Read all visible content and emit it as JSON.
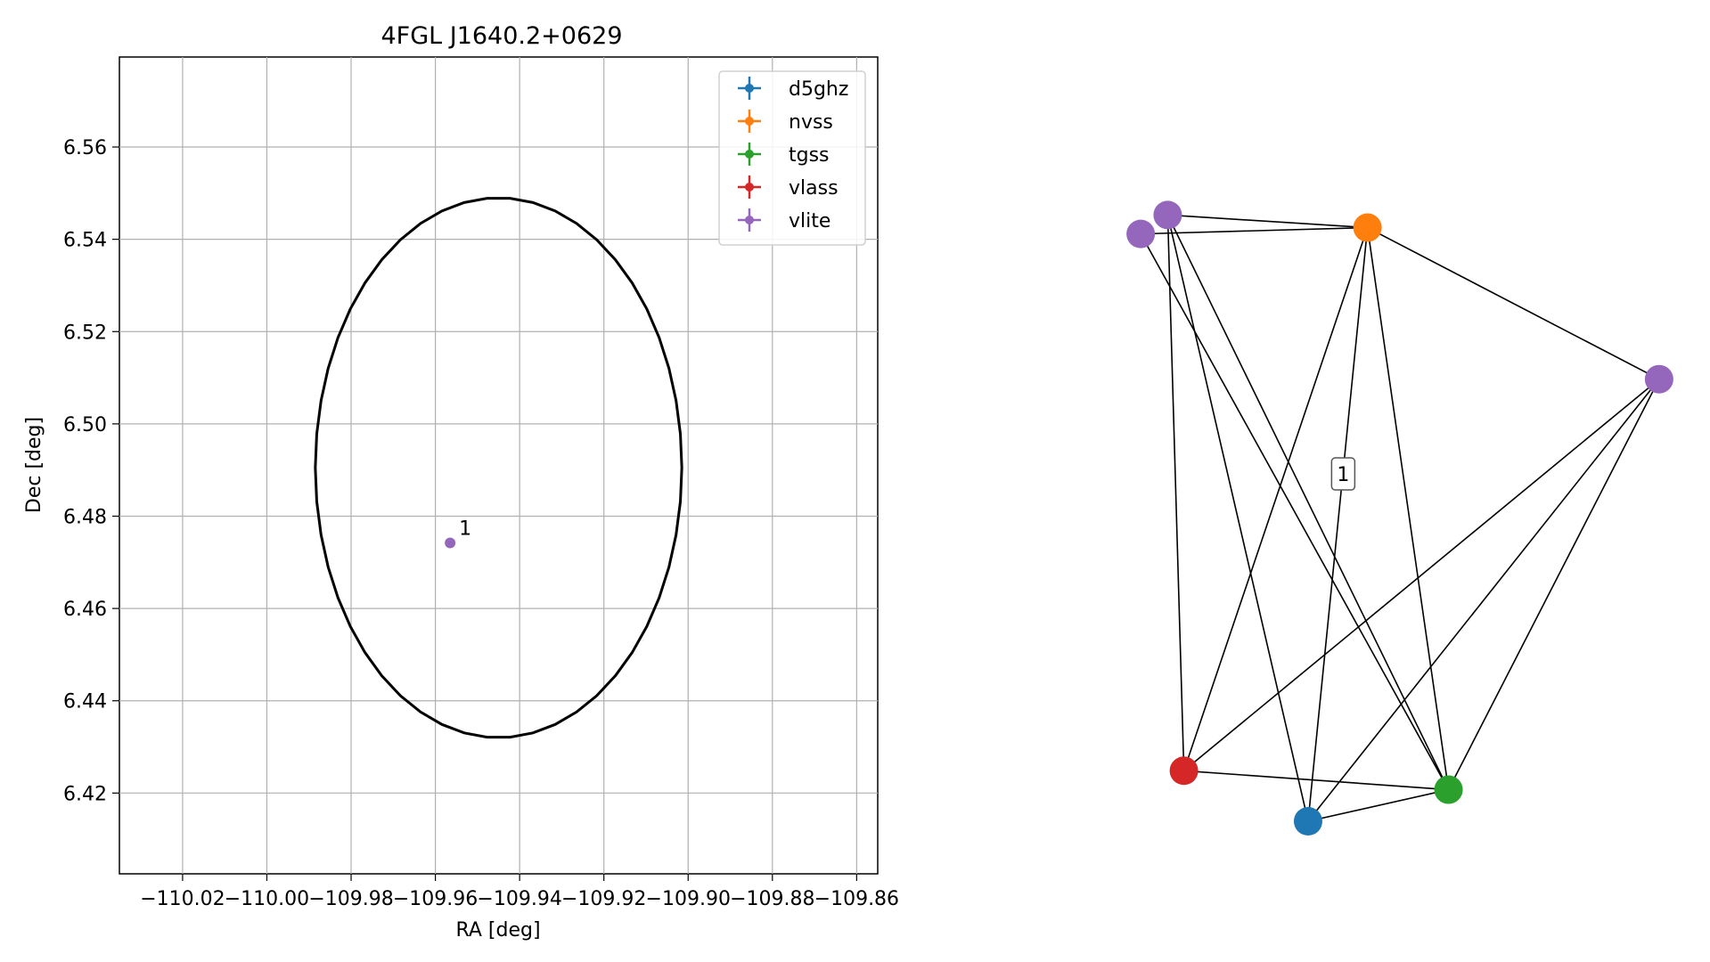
{
  "chart_data": [
    {
      "type": "scatter",
      "title": "4FGL J1640.2+0629",
      "xlabel": "RA [deg]",
      "ylabel": "Dec [deg]",
      "xlim": [
        -110.035,
        -109.855
      ],
      "ylim": [
        6.4025,
        6.5795
      ],
      "xticks": [
        -110.02,
        -110.0,
        -109.98,
        -109.96,
        -109.94,
        -109.92,
        -109.9,
        -109.88,
        -109.86
      ],
      "xtick_labels": [
        "−110.02",
        "−110.00",
        "−109.98",
        "−109.96",
        "−109.94",
        "−109.92",
        "−109.90",
        "−109.88",
        "−109.86"
      ],
      "yticks": [
        6.42,
        6.44,
        6.46,
        6.48,
        6.5,
        6.52,
        6.54,
        6.56
      ],
      "ytick_labels": [
        "6.42",
        "6.44",
        "6.46",
        "6.48",
        "6.50",
        "6.52",
        "6.54",
        "6.56"
      ],
      "grid": true,
      "legend_position": "top-right",
      "legend": [
        {
          "label": "d5ghz",
          "color": "#1f77b4"
        },
        {
          "label": "nvss",
          "color": "#ff7f0e"
        },
        {
          "label": "tgss",
          "color": "#2ca02c"
        },
        {
          "label": "vlass",
          "color": "#d62728"
        },
        {
          "label": "vlite",
          "color": "#9467bd"
        }
      ],
      "ellipse": {
        "center": [
          -109.945,
          6.4905
        ],
        "semi_axis_ra": 0.0435,
        "semi_axis_dec": 0.0585,
        "color": "#000000"
      },
      "points": [
        {
          "ra": -109.9565,
          "dec": 6.4742,
          "series": "vlite",
          "color": "#9467bd",
          "label": "1"
        }
      ]
    },
    {
      "type": "network",
      "nodes": [
        {
          "id": "vlite_a",
          "series": "vlite",
          "color": "#9467bd",
          "x": 0.07,
          "y": 0.96
        },
        {
          "id": "vlite_b",
          "series": "vlite",
          "color": "#9467bd",
          "x": 0.02,
          "y": 0.93
        },
        {
          "id": "nvss",
          "series": "nvss",
          "color": "#ff7f0e",
          "x": 0.44,
          "y": 0.94
        },
        {
          "id": "vlite_c",
          "series": "vlite",
          "color": "#9467bd",
          "x": 0.98,
          "y": 0.7
        },
        {
          "id": "vlass",
          "series": "vlass",
          "color": "#d62728",
          "x": 0.1,
          "y": 0.08
        },
        {
          "id": "tgss",
          "series": "tgss",
          "color": "#2ca02c",
          "x": 0.59,
          "y": 0.05
        },
        {
          "id": "d5ghz",
          "series": "d5ghz",
          "color": "#1f77b4",
          "x": 0.33,
          "y": 0.0
        }
      ],
      "edges": [
        [
          "vlite_a",
          "nvss"
        ],
        [
          "vlite_b",
          "nvss"
        ],
        [
          "nvss",
          "vlite_c"
        ],
        [
          "vlite_a",
          "vlass"
        ],
        [
          "vlite_a",
          "d5ghz"
        ],
        [
          "vlite_a",
          "tgss"
        ],
        [
          "vlite_b",
          "tgss"
        ],
        [
          "nvss",
          "vlass"
        ],
        [
          "nvss",
          "d5ghz"
        ],
        [
          "nvss",
          "tgss"
        ],
        [
          "vlite_c",
          "vlass"
        ],
        [
          "vlite_c",
          "d5ghz"
        ],
        [
          "vlite_c",
          "tgss"
        ],
        [
          "vlass",
          "tgss"
        ],
        [
          "d5ghz",
          "tgss"
        ]
      ],
      "edge_color": "#000000",
      "group_labels": [
        {
          "text": "1",
          "x": 0.395,
          "y": 0.55
        }
      ]
    }
  ]
}
